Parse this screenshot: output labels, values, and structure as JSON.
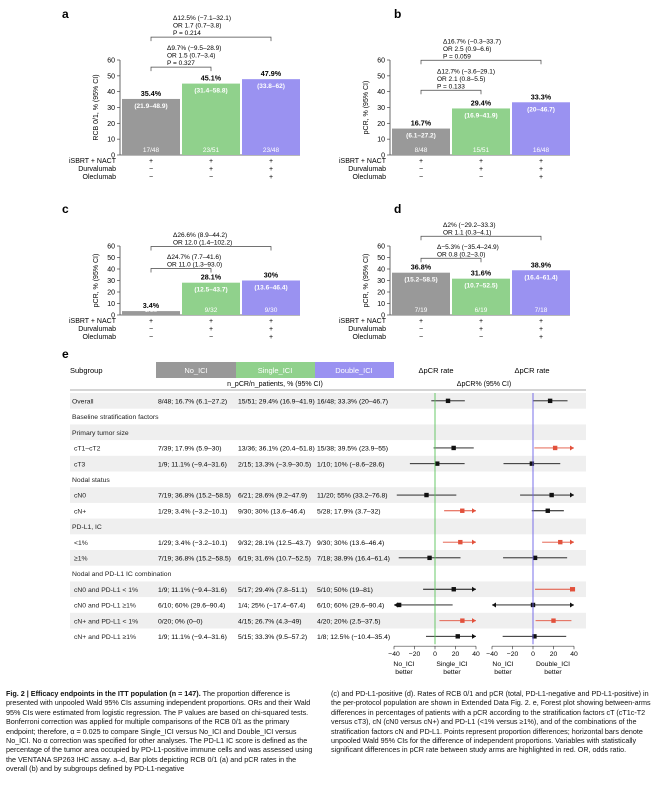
{
  "colors": {
    "noici": "#999999",
    "single": "#90d18c",
    "double": "#9a92f1",
    "red": "#e2513c",
    "green_line": "#59c25a",
    "blue_line": "#6b60e6"
  },
  "panels": [
    {
      "letter": "a",
      "ylabel": "RCB 0/1, % (95% CI)",
      "ymax": 60,
      "yticks": [
        "0",
        "10",
        "20",
        "30",
        "40",
        "50",
        "60"
      ],
      "bars": [
        {
          "value": 35.4,
          "label": "35.4%",
          "ci": "(21.9–48.9)",
          "count": "17/48"
        },
        {
          "value": 45.1,
          "label": "45.1%",
          "ci": "(31.4–58.8)",
          "count": "23/51"
        },
        {
          "value": 47.9,
          "label": "47.9%",
          "ci": "(33.8–62)",
          "count": "23/48"
        }
      ],
      "comp_outer": [
        "Δ12.5% (−7.1–32.1)",
        "OR 1.7 (0.7–3.8)",
        "P = 0.214"
      ],
      "comp_inner": [
        "Δ9.7% (−9.5–28.9)",
        "OR 1.5 (0.7–3.4)",
        "P = 0.327"
      ]
    },
    {
      "letter": "b",
      "ylabel": "pCR, % (95% CI)",
      "ymax": 60,
      "yticks": [
        "0",
        "10",
        "20",
        "30",
        "40",
        "50",
        "60"
      ],
      "bars": [
        {
          "value": 16.7,
          "label": "16.7%",
          "ci": "(6.1–27.2)",
          "count": "8/48"
        },
        {
          "value": 29.4,
          "label": "29.4%",
          "ci": "(16.9–41.9)",
          "count": "15/51"
        },
        {
          "value": 33.3,
          "label": "33.3%",
          "ci": "(20–46.7)",
          "count": "16/48"
        }
      ],
      "comp_outer": [
        "Δ16.7% (−0.3–33.7)",
        "OR 2.5 (0.9–6.6)",
        "P = 0.059"
      ],
      "comp_inner": [
        "Δ12.7% (−3.6–29.1)",
        "OR 2.1 (0.8–5.5)",
        "P = 0.133"
      ]
    },
    {
      "letter": "c",
      "ylabel": "pCR, % (95% CI)",
      "ymax": 60,
      "yticks": [
        "0",
        "10",
        "20",
        "30",
        "40",
        "50",
        "60"
      ],
      "bars": [
        {
          "value": 3.4,
          "label": "3.4%",
          "ci": "(0–10.1)",
          "count": "1/29"
        },
        {
          "value": 28.1,
          "label": "28.1%",
          "ci": "(12.5–43.7)",
          "count": "9/32"
        },
        {
          "value": 30.0,
          "label": "30%",
          "ci": "(13.6–46.4)",
          "count": "9/30"
        }
      ],
      "comp_outer": [
        "Δ26.6% (8.9–44.2)",
        "OR 12.0 (1.4–102.2)"
      ],
      "comp_inner": [
        "Δ24.7% (7.7–41.6)",
        "OR 11.0 (1.3–93.0)"
      ]
    },
    {
      "letter": "d",
      "ylabel": "pCR, % (95% CI)",
      "ymax": 60,
      "yticks": [
        "0",
        "10",
        "20",
        "30",
        "40",
        "50",
        "60"
      ],
      "bars": [
        {
          "value": 36.8,
          "label": "36.8%",
          "ci": "(15.2–58.5)",
          "count": "7/19"
        },
        {
          "value": 31.6,
          "label": "31.6%",
          "ci": "(10.7–52.5)",
          "count": "6/19"
        },
        {
          "value": 38.9,
          "label": "38.9%",
          "ci": "(16.4–61.4)",
          "count": "7/18"
        }
      ],
      "comp_outer": [
        "Δ2% (−29.2–33.3)",
        "OR 1.1 (0.3–4.1)"
      ],
      "comp_inner": [
        "Δ−5.3% (−35.4–24.9)",
        "OR 0.8 (0.2–3.0)"
      ]
    }
  ],
  "design_rows": [
    {
      "label": "iSBRT + NACT",
      "marks": [
        "+",
        "+",
        "+"
      ]
    },
    {
      "label": "Durvalumab",
      "marks": [
        "−",
        "+",
        "+"
      ]
    },
    {
      "label": "Oleclumab",
      "marks": [
        "−",
        "−",
        "+"
      ]
    }
  ],
  "forest": {
    "letter": "e",
    "header": {
      "subgroup": "Subgroup",
      "no_ici": "No_ICI",
      "single_ici": "Single_ICI",
      "double_ici": "Double_ICI",
      "dpcr1": "ΔpCR rate",
      "dpcr2": "ΔpCR rate",
      "sub_mid": "n_pCR/n_patients, % (95% CI)",
      "sub_right": "ΔpCR% (95% CI)"
    },
    "rows": [
      {
        "label": "Overall",
        "kind": "data",
        "indent": false,
        "cols": [
          "8/48; 16.7% (6.1–27.2)",
          "15/51; 29.4% (16.9–41.9)",
          "16/48; 33.3% (20–46.7)"
        ],
        "d1": [
          12.7,
          -3.6,
          29.1
        ],
        "d2": [
          16.7,
          -0.3,
          33.7
        ],
        "sig1": false,
        "sig2": false
      },
      {
        "label": "Baseline stratification factors",
        "kind": "header"
      },
      {
        "label": "Primary tumor size",
        "kind": "header"
      },
      {
        "label": "cT1–cT2",
        "kind": "data",
        "indent": true,
        "cols": [
          "7/39; 17.9% (5.9–30)",
          "13/36; 36.1% (20.4–51.8)",
          "15/38; 39.5% (23.9–55)"
        ],
        "d1": [
          18.2,
          -1.4,
          37.8
        ],
        "d2": [
          21.6,
          1.3,
          41.9
        ],
        "sig1": false,
        "sig2": true
      },
      {
        "label": "cT3",
        "kind": "data",
        "indent": true,
        "cols": [
          "1/9; 11.1% (−9.4–31.6)",
          "2/15; 13.3% (−3.9–30.5)",
          "1/10; 10% (−8.6–28.6)"
        ],
        "d1": [
          2.2,
          -24.5,
          28.9
        ],
        "d2": [
          -1.1,
          -28.8,
          26.6
        ],
        "sig1": false,
        "sig2": false
      },
      {
        "label": "Nodal status",
        "kind": "header"
      },
      {
        "label": "cN0",
        "kind": "data",
        "indent": true,
        "cols": [
          "7/19; 36.8% (15.2–58.5)",
          "6/21; 28.6% (9.2–47.9)",
          "11/20; 55% (33.2–76.8)"
        ],
        "d1": [
          -8.3,
          -37.3,
          20.8
        ],
        "d2": [
          18.2,
          -12.6,
          48.9
        ],
        "sig1": false,
        "sig2": false
      },
      {
        "label": "cN+",
        "kind": "data",
        "indent": true,
        "cols": [
          "1/29; 3.4% (−3.2–10.1)",
          "9/30; 30% (13.6–46.4)",
          "5/28; 17.9% (3.7–32)"
        ],
        "d1": [
          26.6,
          8.9,
          44.2
        ],
        "d2": [
          14.4,
          -1.2,
          30.1
        ],
        "sig1": true,
        "sig2": false
      },
      {
        "label": "PD-L1, IC",
        "kind": "header"
      },
      {
        "label": "<1%",
        "kind": "data",
        "indent": true,
        "cols": [
          "1/29; 3.4% (−3.2–10.1)",
          "9/32; 28.1% (12.5–43.7)",
          "9/30; 30% (13.6–46.4)"
        ],
        "d1": [
          24.7,
          7.7,
          41.6
        ],
        "d2": [
          26.6,
          8.9,
          44.2
        ],
        "sig1": true,
        "sig2": true
      },
      {
        "label": "≥1%",
        "kind": "data",
        "indent": true,
        "cols": [
          "7/19; 36.8% (15.2–58.5)",
          "6/19; 31.6% (10.7–52.5)",
          "7/18; 38.9% (16.4–61.4)"
        ],
        "d1": [
          -5.3,
          -35.4,
          24.9
        ],
        "d2": [
          2.0,
          -29.2,
          33.3
        ],
        "sig1": false,
        "sig2": false
      },
      {
        "label": "Nodal and PD-L1 IC combination",
        "kind": "header"
      },
      {
        "label": "cN0 and PD-L1 < 1%",
        "kind": "data",
        "indent": true,
        "cols": [
          "1/9; 11.1% (−9.4–31.6)",
          "5/17; 29.4% (7.8–51.1)",
          "5/10; 50% (19–81)"
        ],
        "d1": [
          18.3,
          -11.6,
          48.2
        ],
        "d2": [
          38.9,
          2.0,
          75.8
        ],
        "sig1": false,
        "sig2": true
      },
      {
        "label": "cN0 and PD-L1 ≥1%",
        "kind": "data",
        "indent": true,
        "cols": [
          "6/10; 60% (29.6–90.4)",
          "1/4; 25% (−17.4–67.4)",
          "6/10; 60% (29.6–90.4)"
        ],
        "d1": [
          -35,
          -87.2,
          17.2
        ],
        "d2": [
          0,
          -43,
          43
        ],
        "sig1": false,
        "sig2": false
      },
      {
        "label": "cN+ and PD-L1 < 1%",
        "kind": "data",
        "indent": true,
        "cols": [
          "0/20; 0% (0–0)",
          "4/15; 26.7% (4.3–49)",
          "4/20; 20% (2.5–37.5)"
        ],
        "d1": [
          26.7,
          4.3,
          49
        ],
        "d2": [
          20,
          2.5,
          37.5
        ],
        "sig1": true,
        "sig2": true
      },
      {
        "label": "cN+ and PD-L1 ≥1%",
        "kind": "data",
        "indent": true,
        "cols": [
          "1/9; 11.1% (−9.4–31.6)",
          "5/15; 33.3% (9.5–57.2)",
          "1/8; 12.5% (−10.4–35.4)"
        ],
        "d1": [
          22.2,
          -8.8,
          53.3
        ],
        "d2": [
          1.4,
          -29.6,
          32.4
        ],
        "sig1": false,
        "sig2": false
      }
    ],
    "axis_ticks": [
      "−40",
      "−20",
      "0",
      "20",
      "40"
    ],
    "xlabels": {
      "left_a": "No_ICI",
      "left_b": "better",
      "mid_a": "Single_ICI",
      "mid_b": "better",
      "mid2_a": "No_ICI",
      "mid2_b": "better",
      "right_a": "Double_ICI",
      "right_b": "better"
    }
  },
  "caption": {
    "title": "Fig. 2 | Efficacy endpoints in the ITT population (n = 147).",
    "left": "The proportion difference is presented with unpooled Wald 95% CIs assuming independent proportions. ORs and their Wald 95% CIs were estimated from logistic regression. The P values are based on chi-squared tests. Bonferroni correction was applied for multiple comparisons of the RCB 0/1 as the primary endpoint; therefore, α = 0.025 to compare Single_ICI versus No_ICI and Double_ICI versus No_ICI. No α correction was specified for other analyses. The PD-L1 IC score is defined as the percentage of the tumor area occupied by PD-L1-positive immune cells and was assessed using the VENTANA SP263 IHC assay. a–d, Bar plots depicting RCB 0/1 (a) and pCR rates in the overall (b) and by subgroups defined by PD-L1-negative",
    "right": "(c) and PD-L1-positive (d). Rates of RCB 0/1 and pCR (total, PD-L1-negative and PD-L1-positive) in the per-protocol population are shown in Extended Data Fig. 2. e, Forest plot showing between-arms differences in percentages of patients with a pCR according to the stratification factors cT (cT1c-T2 versus cT3), cN (cN0 versus cN+) and PD-L1 (<1% versus ≥1%), and of the combinations of the stratification factors cN and PD-L1. Points represent proportion differences; horizontal bars denote unpooled Wald 95% CIs for the difference of independent proportions. Variables with statistically significant differences in pCR rate between study arms are highlighted in red. OR, odds ratio."
  }
}
